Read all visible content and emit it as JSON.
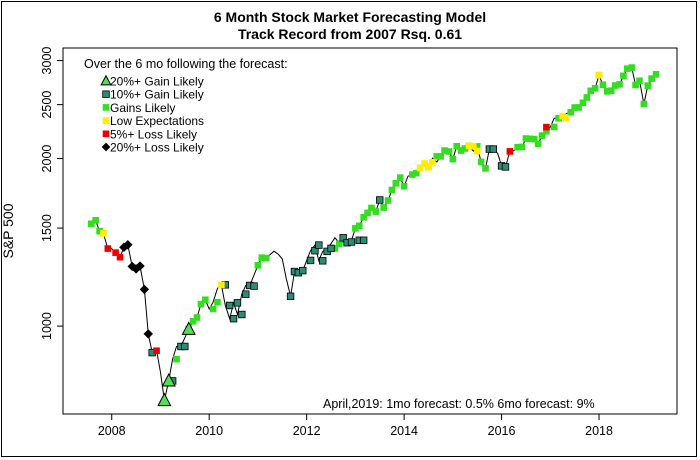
{
  "title_line1": "6 Month Stock Market Forecasting Model",
  "title_line2": "Track Record from 2007     Rsq. 0.61",
  "legend": {
    "heading": "Over the 6 mo following the forecast:",
    "items": [
      {
        "key": "gain20",
        "label": "20%+ Gain Likely",
        "shape": "triangle",
        "color": "#55dd55"
      },
      {
        "key": "gain10",
        "label": "10%+ Gain Likely",
        "shape": "square",
        "color": "#2e8b74"
      },
      {
        "key": "gains",
        "label": "Gains Likely",
        "shape": "square",
        "color": "#33dd22"
      },
      {
        "key": "low",
        "label": "Low Expectations",
        "shape": "square",
        "color": "#ffee00"
      },
      {
        "key": "loss5",
        "label": "5%+  Loss Likely",
        "shape": "square",
        "color": "#ee0000"
      },
      {
        "key": "loss20",
        "label": "20%+  Loss Likely",
        "shape": "diamond",
        "color": "#000000"
      }
    ]
  },
  "footer_note": "April,2019:   1mo forecast: 0.5%    6mo forecast: 9%",
  "chart_data": {
    "type": "scatter",
    "title": "6 Month Stock Market Forecasting Model",
    "subtitle": "Track Record from 2007     Rsq. 0.61",
    "xlabel": "",
    "ylabel": "S&P 500",
    "y_scale": "log",
    "xlim": [
      2007.0,
      2019.6
    ],
    "ylim": [
      695,
      3160
    ],
    "x_ticks": [
      2008,
      2010,
      2012,
      2014,
      2016,
      2018
    ],
    "y_ticks": [
      1000,
      1500,
      2000,
      2500,
      3000
    ],
    "grid": false,
    "legend_position": "top-left",
    "series": [
      {
        "key": "gains",
        "points": [
          [
            2007.58,
            1527
          ],
          [
            2007.67,
            1549
          ],
          [
            2007.75,
            1481
          ],
          [
            2009.33,
            872
          ],
          [
            2009.42,
            919
          ],
          [
            2009.58,
            987
          ],
          [
            2009.67,
            1020
          ],
          [
            2009.75,
            1036
          ],
          [
            2009.83,
            1095
          ],
          [
            2009.92,
            1115
          ],
          [
            2010.08,
            1073
          ],
          [
            2010.17,
            1104
          ],
          [
            2010.33,
            1186
          ],
          [
            2011.0,
            1286
          ],
          [
            2011.08,
            1327
          ],
          [
            2011.17,
            1325
          ],
          [
            2012.58,
            1379
          ],
          [
            2012.67,
            1406
          ],
          [
            2013.0,
            1498
          ],
          [
            2013.08,
            1514
          ],
          [
            2013.17,
            1569
          ],
          [
            2013.25,
            1597
          ],
          [
            2013.33,
            1630
          ],
          [
            2013.42,
            1606
          ],
          [
            2013.5,
            1685
          ],
          [
            2013.58,
            1633
          ],
          [
            2013.67,
            1681
          ],
          [
            2013.75,
            1756
          ],
          [
            2013.83,
            1805
          ],
          [
            2013.92,
            1848
          ],
          [
            2014.0,
            1783
          ],
          [
            2014.17,
            1872
          ],
          [
            2014.25,
            1883
          ],
          [
            2014.33,
            1923
          ],
          [
            2014.5,
            1931
          ],
          [
            2014.67,
            2018
          ],
          [
            2014.75,
            2018
          ],
          [
            2014.83,
            2067
          ],
          [
            2014.92,
            2059
          ],
          [
            2015.0,
            1995
          ],
          [
            2015.08,
            2104
          ],
          [
            2015.17,
            2067
          ],
          [
            2015.25,
            2085
          ],
          [
            2015.33,
            2107
          ],
          [
            2015.5,
            2103
          ],
          [
            2015.58,
            1972
          ],
          [
            2015.67,
            1920
          ],
          [
            2015.83,
            2080
          ],
          [
            2016.0,
            1940
          ],
          [
            2016.08,
            1932
          ],
          [
            2016.33,
            2096
          ],
          [
            2016.42,
            2099
          ],
          [
            2016.5,
            2173
          ],
          [
            2016.58,
            2170
          ],
          [
            2016.67,
            2168
          ],
          [
            2016.75,
            2126
          ],
          [
            2016.83,
            2199
          ],
          [
            2016.92,
            2239
          ],
          [
            2017.08,
            2279
          ],
          [
            2017.17,
            2363
          ],
          [
            2017.42,
            2423
          ],
          [
            2017.5,
            2470
          ],
          [
            2017.58,
            2471
          ],
          [
            2017.67,
            2519
          ],
          [
            2017.75,
            2575
          ],
          [
            2017.83,
            2647
          ],
          [
            2017.92,
            2674
          ],
          [
            2018.0,
            2824
          ],
          [
            2018.08,
            2714
          ],
          [
            2018.17,
            2641
          ],
          [
            2018.25,
            2648
          ],
          [
            2018.33,
            2705
          ],
          [
            2018.42,
            2718
          ],
          [
            2018.5,
            2816
          ],
          [
            2018.58,
            2901
          ],
          [
            2018.67,
            2914
          ],
          [
            2018.75,
            2711
          ],
          [
            2018.83,
            2760
          ],
          [
            2018.92,
            2507
          ],
          [
            2019.0,
            2704
          ],
          [
            2019.08,
            2784
          ],
          [
            2019.17,
            2834
          ]
        ]
      },
      {
        "key": "gain10",
        "points": [
          [
            2008.83,
            896
          ],
          [
            2009.25,
            797
          ],
          [
            2009.42,
            919
          ],
          [
            2009.5,
            919
          ],
          [
            2010.33,
            1186
          ],
          [
            2010.42,
            1089
          ],
          [
            2010.5,
            1031
          ],
          [
            2010.58,
            1101
          ],
          [
            2010.67,
            1049
          ],
          [
            2010.75,
            1141
          ],
          [
            2010.83,
            1183
          ],
          [
            2010.92,
            1180
          ],
          [
            2011.67,
            1131
          ],
          [
            2011.75,
            1253
          ],
          [
            2011.83,
            1247
          ],
          [
            2011.92,
            1258
          ],
          [
            2012.08,
            1312
          ],
          [
            2012.17,
            1366
          ],
          [
            2012.25,
            1398
          ],
          [
            2012.33,
            1310
          ],
          [
            2012.42,
            1362
          ],
          [
            2012.5,
            1379
          ],
          [
            2012.75,
            1441
          ],
          [
            2012.83,
            1412
          ],
          [
            2012.92,
            1416
          ],
          [
            2013.08,
            1426
          ],
          [
            2013.17,
            1426
          ],
          [
            2013.5,
            1685
          ],
          [
            2015.75,
            2080
          ],
          [
            2015.83,
            2080
          ],
          [
            2016.0,
            1940
          ],
          [
            2016.08,
            1932
          ]
        ]
      },
      {
        "key": "low",
        "points": [
          [
            2007.83,
            1468
          ],
          [
            2010.25,
            1186
          ],
          [
            2014.33,
            1923
          ],
          [
            2014.42,
            1960
          ],
          [
            2014.5,
            1930
          ],
          [
            2014.58,
            1970
          ],
          [
            2015.33,
            2107
          ],
          [
            2015.42,
            2104
          ],
          [
            2015.5,
            2063
          ],
          [
            2017.25,
            2384
          ],
          [
            2017.33,
            2362
          ],
          [
            2018.0,
            2824
          ]
        ]
      },
      {
        "key": "loss5",
        "points": [
          [
            2007.92,
            1378
          ],
          [
            2008.08,
            1355
          ],
          [
            2008.17,
            1330
          ],
          [
            2008.92,
            903
          ],
          [
            2016.17,
            2060
          ],
          [
            2016.92,
            2278
          ]
        ]
      },
      {
        "key": "loss20",
        "points": [
          [
            2008.25,
            1385
          ],
          [
            2008.33,
            1400
          ],
          [
            2008.42,
            1280
          ],
          [
            2008.5,
            1267
          ],
          [
            2008.58,
            1282
          ],
          [
            2008.67,
            1164
          ],
          [
            2008.75,
            968
          ]
        ]
      },
      {
        "key": "gain20",
        "points": [
          [
            2009.08,
            735
          ],
          [
            2009.17,
            797
          ],
          [
            2009.58,
            987
          ]
        ]
      }
    ],
    "line_points": [
      [
        2007.58,
        1527
      ],
      [
        2007.67,
        1549
      ],
      [
        2007.75,
        1481
      ],
      [
        2007.83,
        1468
      ],
      [
        2007.92,
        1378
      ],
      [
        2008.0,
        1378
      ],
      [
        2008.08,
        1355
      ],
      [
        2008.17,
        1330
      ],
      [
        2008.25,
        1385
      ],
      [
        2008.33,
        1400
      ],
      [
        2008.42,
        1280
      ],
      [
        2008.5,
        1267
      ],
      [
        2008.58,
        1282
      ],
      [
        2008.67,
        1164
      ],
      [
        2008.75,
        968
      ],
      [
        2008.83,
        896
      ],
      [
        2008.92,
        903
      ],
      [
        2009.0,
        826
      ],
      [
        2009.08,
        735
      ],
      [
        2009.17,
        797
      ],
      [
        2009.25,
        872
      ],
      [
        2009.33,
        919
      ],
      [
        2009.42,
        919
      ],
      [
        2009.58,
        987
      ],
      [
        2009.67,
        1020
      ],
      [
        2009.75,
        1036
      ],
      [
        2009.83,
        1095
      ],
      [
        2009.92,
        1115
      ],
      [
        2010.0,
        1073
      ],
      [
        2010.08,
        1104
      ],
      [
        2010.17,
        1169
      ],
      [
        2010.25,
        1186
      ],
      [
        2010.33,
        1089
      ],
      [
        2010.42,
        1031
      ],
      [
        2010.5,
        1101
      ],
      [
        2010.58,
        1049
      ],
      [
        2010.67,
        1141
      ],
      [
        2010.75,
        1183
      ],
      [
        2010.83,
        1180
      ],
      [
        2011.0,
        1286
      ],
      [
        2011.08,
        1327
      ],
      [
        2011.17,
        1325
      ],
      [
        2011.33,
        1363
      ],
      [
        2011.42,
        1345
      ],
      [
        2011.5,
        1320
      ],
      [
        2011.58,
        1218
      ],
      [
        2011.67,
        1131
      ],
      [
        2011.75,
        1253
      ],
      [
        2011.83,
        1247
      ],
      [
        2011.92,
        1258
      ],
      [
        2012.0,
        1312
      ],
      [
        2012.08,
        1366
      ],
      [
        2012.17,
        1398
      ],
      [
        2012.25,
        1310
      ],
      [
        2012.33,
        1362
      ],
      [
        2012.42,
        1379
      ],
      [
        2012.5,
        1406
      ],
      [
        2012.58,
        1441
      ],
      [
        2012.67,
        1412
      ],
      [
        2012.75,
        1416
      ],
      [
        2012.83,
        1426
      ],
      [
        2012.92,
        1426
      ],
      [
        2013.0,
        1498
      ],
      [
        2013.08,
        1514
      ],
      [
        2013.17,
        1569
      ],
      [
        2013.25,
        1597
      ],
      [
        2013.33,
        1630
      ],
      [
        2013.42,
        1606
      ],
      [
        2013.5,
        1685
      ],
      [
        2013.58,
        1633
      ],
      [
        2013.67,
        1681
      ],
      [
        2013.75,
        1756
      ],
      [
        2013.83,
        1805
      ],
      [
        2013.92,
        1848
      ],
      [
        2014.0,
        1783
      ],
      [
        2014.08,
        1859
      ],
      [
        2014.17,
        1872
      ],
      [
        2014.25,
        1883
      ],
      [
        2014.33,
        1923
      ],
      [
        2014.42,
        1960
      ],
      [
        2014.5,
        1930
      ],
      [
        2014.58,
        2003
      ],
      [
        2014.67,
        1972
      ],
      [
        2014.75,
        2018
      ],
      [
        2014.83,
        2067
      ],
      [
        2014.92,
        2059
      ],
      [
        2015.0,
        1995
      ],
      [
        2015.08,
        2104
      ],
      [
        2015.17,
        2067
      ],
      [
        2015.25,
        2085
      ],
      [
        2015.33,
        2107
      ],
      [
        2015.42,
        2063
      ],
      [
        2015.5,
        2103
      ],
      [
        2015.58,
        1972
      ],
      [
        2015.67,
        1920
      ],
      [
        2015.75,
        2079
      ],
      [
        2015.83,
        2080
      ],
      [
        2015.92,
        2043
      ],
      [
        2016.0,
        1940
      ],
      [
        2016.08,
        1932
      ],
      [
        2016.17,
        2060
      ],
      [
        2016.25,
        2065
      ],
      [
        2016.33,
        2096
      ],
      [
        2016.42,
        2099
      ],
      [
        2016.5,
        2173
      ],
      [
        2016.58,
        2170
      ],
      [
        2016.67,
        2168
      ],
      [
        2016.75,
        2126
      ],
      [
        2016.83,
        2199
      ],
      [
        2016.92,
        2239
      ],
      [
        2017.0,
        2278
      ],
      [
        2017.08,
        2363
      ],
      [
        2017.17,
        2362
      ],
      [
        2017.25,
        2384
      ],
      [
        2017.33,
        2411
      ],
      [
        2017.42,
        2423
      ],
      [
        2017.5,
        2470
      ],
      [
        2017.58,
        2471
      ],
      [
        2017.67,
        2519
      ],
      [
        2017.75,
        2575
      ],
      [
        2017.83,
        2647
      ],
      [
        2017.92,
        2674
      ],
      [
        2018.0,
        2824
      ],
      [
        2018.08,
        2714
      ],
      [
        2018.17,
        2641
      ],
      [
        2018.25,
        2648
      ],
      [
        2018.33,
        2705
      ],
      [
        2018.42,
        2718
      ],
      [
        2018.5,
        2816
      ],
      [
        2018.58,
        2901
      ],
      [
        2018.67,
        2914
      ],
      [
        2018.75,
        2711
      ],
      [
        2018.83,
        2760
      ],
      [
        2018.92,
        2507
      ],
      [
        2019.0,
        2704
      ],
      [
        2019.08,
        2784
      ],
      [
        2019.17,
        2834
      ]
    ]
  }
}
